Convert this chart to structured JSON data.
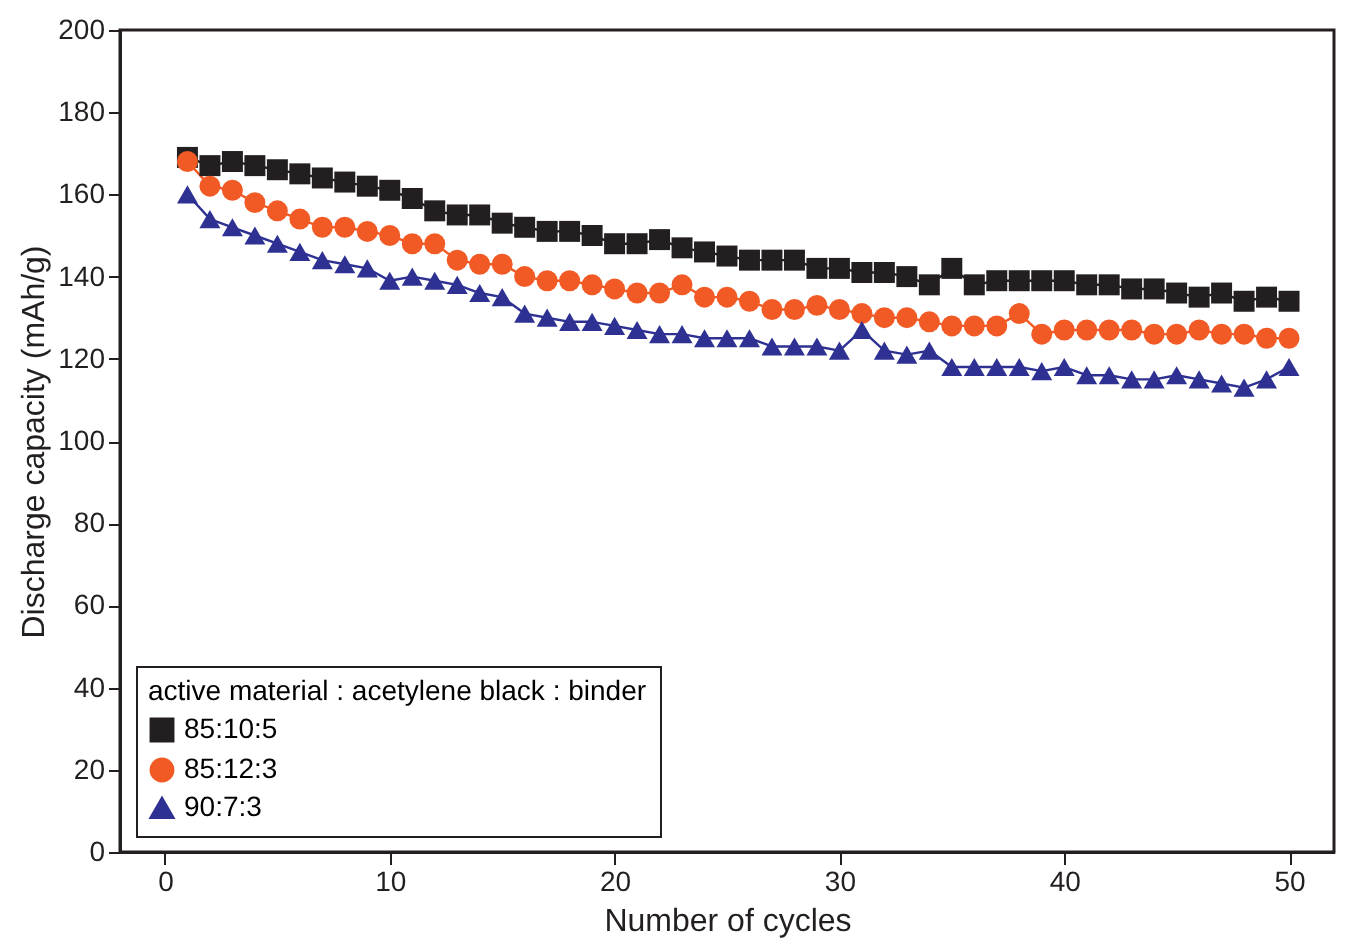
{
  "chart_data": {
    "type": "line",
    "xlabel": "Number of cycles",
    "ylabel": "Discharge capacity (mAh/g)",
    "legend_title": "active material : acetylene black : binder",
    "legend": "bottom left",
    "grid": false,
    "x": [
      1,
      2,
      3,
      4,
      5,
      6,
      7,
      8,
      9,
      10,
      11,
      12,
      13,
      14,
      15,
      16,
      17,
      18,
      19,
      20,
      21,
      22,
      23,
      24,
      25,
      26,
      27,
      28,
      29,
      30,
      31,
      32,
      33,
      34,
      35,
      36,
      37,
      38,
      39,
      40,
      41,
      42,
      43,
      44,
      45,
      46,
      47,
      48,
      49,
      50
    ],
    "xlim": [
      -2,
      52
    ],
    "xticks": [
      0,
      10,
      20,
      30,
      40,
      50
    ],
    "ylim": [
      0,
      200
    ],
    "yticks": [
      0,
      20,
      40,
      60,
      80,
      100,
      120,
      140,
      160,
      180,
      200
    ],
    "line_style": "solid",
    "series": [
      {
        "name": "85:10:5",
        "color": "#231f20",
        "marker": "square",
        "values": [
          169,
          167,
          168,
          167,
          166,
          165,
          164,
          163,
          162,
          161,
          159,
          156,
          155,
          155,
          153,
          152,
          151,
          151,
          150,
          148,
          148,
          149,
          147,
          146,
          145,
          144,
          144,
          144,
          142,
          142,
          141,
          141,
          140,
          138,
          142,
          138,
          139,
          139,
          139,
          139,
          138,
          138,
          137,
          137,
          136,
          135,
          136,
          134,
          135,
          134
        ]
      },
      {
        "name": "85:12:3",
        "color": "#f15a24",
        "marker": "circle",
        "values": [
          168,
          162,
          161,
          158,
          156,
          154,
          152,
          152,
          151,
          150,
          148,
          148,
          144,
          143,
          143,
          140,
          139,
          139,
          138,
          137,
          136,
          136,
          138,
          135,
          135,
          134,
          132,
          132,
          133,
          132,
          131,
          130,
          130,
          129,
          128,
          128,
          128,
          131,
          126,
          127,
          127,
          127,
          127,
          126,
          126,
          127,
          126,
          126,
          125,
          125
        ]
      },
      {
        "name": "90:7:3",
        "color": "#2e3192",
        "marker": "triangle",
        "values": [
          160,
          154,
          152,
          150,
          148,
          146,
          144,
          143,
          142,
          139,
          140,
          139,
          138,
          136,
          135,
          131,
          130,
          129,
          129,
          128,
          127,
          126,
          126,
          125,
          125,
          125,
          123,
          123,
          123,
          122,
          127,
          122,
          121,
          122,
          118,
          118,
          118,
          118,
          117,
          118,
          116,
          116,
          115,
          115,
          116,
          115,
          114,
          113,
          115,
          118
        ]
      }
    ]
  }
}
